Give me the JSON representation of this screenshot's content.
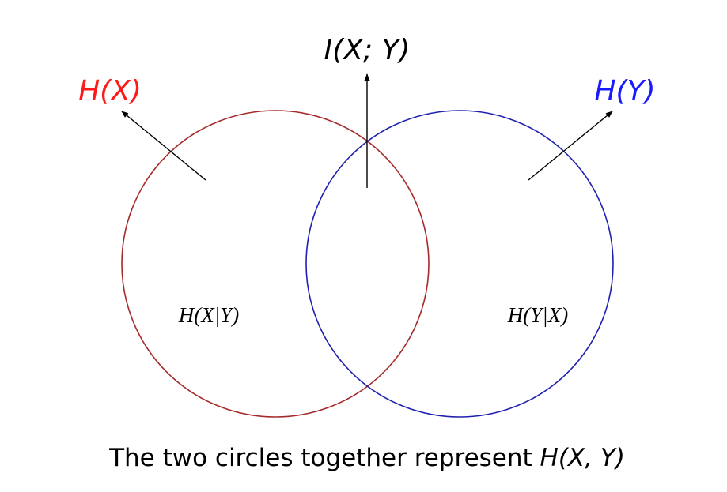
{
  "labels": {
    "entropy_x": "H(X)",
    "entropy_y": "H(Y)",
    "mutual_information": "I(X; Y)",
    "conditional_x_given_y": "H(X|Y)",
    "conditional_y_given_x": "H(Y|X)"
  },
  "caption": {
    "text": "The two circles together represent ",
    "math": "H(X, Y)"
  },
  "colors": {
    "circle_x": "#a52a2a",
    "circle_y": "#2020b0",
    "label_x": "#ff1a1a",
    "label_y": "#1a1aff",
    "arrows": "#000000",
    "text": "#000000"
  }
}
